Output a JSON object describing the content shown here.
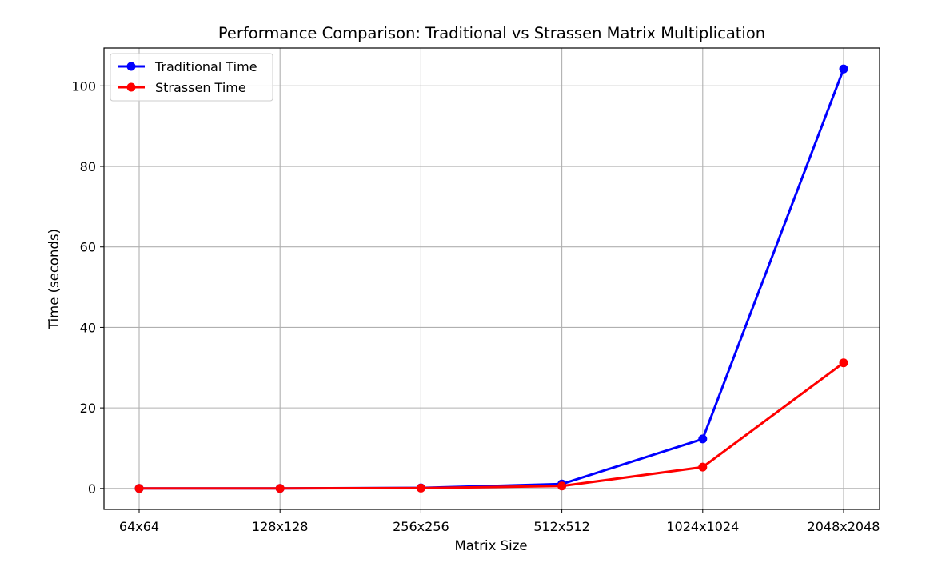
{
  "chart_data": {
    "type": "line",
    "title": "Performance Comparison: Traditional vs Strassen Matrix Multiplication",
    "xlabel": "Matrix Size",
    "ylabel": "Time (seconds)",
    "categories": [
      "64x64",
      "128x128",
      "256x256",
      "512x512",
      "1024x1024",
      "2048x2048"
    ],
    "yticks": [
      0,
      20,
      40,
      60,
      80,
      100
    ],
    "ylim": [
      -5.2,
      109.4
    ],
    "grid": true,
    "legend_position": "top-left",
    "series": [
      {
        "name": "Traditional Time",
        "color": "#0000ff",
        "values": [
          0.002,
          0.02,
          0.15,
          1.1,
          12.3,
          104.2
        ]
      },
      {
        "name": "Strassen Time",
        "color": "#ff0000",
        "values": [
          0.003,
          0.02,
          0.1,
          0.6,
          5.3,
          31.2
        ]
      }
    ]
  }
}
